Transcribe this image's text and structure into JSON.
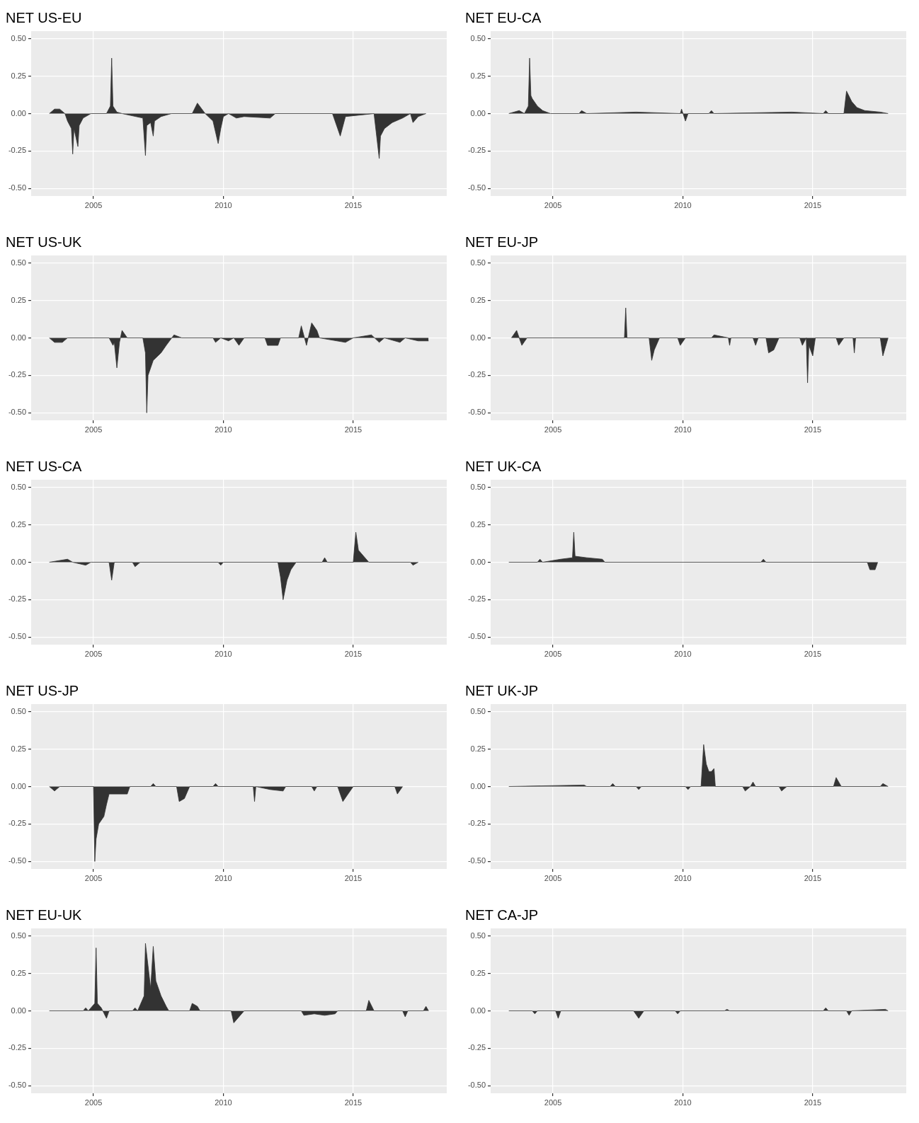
{
  "chart_data": [
    {
      "type": "area",
      "title": "NET US-EU",
      "color": "#333333",
      "grid": true,
      "xlim": [
        2002.6,
        2018.6
      ],
      "ylim": [
        -0.55,
        0.55
      ],
      "xticks": [
        2005,
        2010,
        2015
      ],
      "yticks": [
        {
          "value": -0.5,
          "label": "-0.50"
        },
        {
          "value": -0.25,
          "label": "-0.25"
        },
        {
          "value": 0,
          "label": "0.00"
        },
        {
          "value": 0.25,
          "label": "0.25"
        },
        {
          "value": 0.5,
          "label": "0.50"
        }
      ],
      "x": [
        2003.3,
        2003.5,
        2003.7,
        2003.9,
        2004.0,
        2004.15,
        2004.2,
        2004.25,
        2004.4,
        2004.45,
        2004.6,
        2004.9,
        2005.5,
        2005.65,
        2005.7,
        2005.75,
        2005.9,
        2006.1,
        2006.9,
        2007.0,
        2007.05,
        2007.2,
        2007.3,
        2007.35,
        2007.6,
        2008.0,
        2008.8,
        2009.0,
        2009.3,
        2009.6,
        2009.8,
        2009.9,
        2010.0,
        2010.2,
        2010.5,
        2010.8,
        2011.8,
        2012.0,
        2014.2,
        2014.4,
        2014.5,
        2014.7,
        2015.8,
        2016.0,
        2016.05,
        2016.2,
        2016.5,
        2016.9,
        2017.2,
        2017.3,
        2017.5,
        2017.8
      ],
      "values": [
        0,
        0.03,
        0.03,
        0,
        -0.05,
        -0.1,
        -0.27,
        -0.1,
        -0.22,
        -0.08,
        -0.03,
        0,
        0,
        0.05,
        0.37,
        0.05,
        0.01,
        0,
        -0.03,
        -0.28,
        -0.08,
        -0.06,
        -0.15,
        -0.05,
        -0.02,
        0,
        0,
        0.07,
        0,
        -0.05,
        -0.2,
        -0.1,
        -0.02,
        0,
        -0.03,
        -0.02,
        -0.03,
        0,
        0,
        -0.1,
        -0.15,
        -0.02,
        0,
        -0.3,
        -0.15,
        -0.1,
        -0.06,
        -0.03,
        0,
        -0.06,
        -0.02,
        0
      ]
    },
    {
      "type": "area",
      "title": "NET EU-CA",
      "color": "#333333",
      "grid": true,
      "xlim": [
        2002.6,
        2018.6
      ],
      "ylim": [
        -0.55,
        0.55
      ],
      "xticks": [
        2005,
        2010,
        2015
      ],
      "yticks": [
        {
          "value": -0.5,
          "label": "-0.50"
        },
        {
          "value": -0.25,
          "label": "-0.25"
        },
        {
          "value": 0,
          "label": "0.00"
        },
        {
          "value": 0.25,
          "label": "0.25"
        },
        {
          "value": 0.5,
          "label": "0.50"
        }
      ],
      "x": [
        2003.3,
        2003.7,
        2003.9,
        2004.05,
        2004.1,
        2004.15,
        2004.2,
        2004.4,
        2004.6,
        2004.9,
        2006.0,
        2006.1,
        2006.3,
        2008.2,
        2009.9,
        2009.95,
        2010.1,
        2010.2,
        2011.0,
        2011.1,
        2011.2,
        2014.2,
        2015.4,
        2015.5,
        2015.6,
        2016.2,
        2016.3,
        2016.5,
        2016.7,
        2017.0,
        2017.6,
        2017.9
      ],
      "values": [
        0,
        0.02,
        0,
        0.05,
        0.37,
        0.12,
        0.1,
        0.05,
        0.02,
        0,
        0,
        0.02,
        0,
        0.01,
        0,
        0.03,
        -0.05,
        0,
        0,
        0.02,
        0,
        0.01,
        0,
        0.02,
        0,
        0,
        0.15,
        0.08,
        0.04,
        0.02,
        0.01,
        0
      ]
    },
    {
      "type": "area",
      "title": "NET US-UK",
      "color": "#333333",
      "grid": true,
      "xlim": [
        2002.6,
        2018.6
      ],
      "ylim": [
        -0.55,
        0.55
      ],
      "xticks": [
        2005,
        2010,
        2015
      ],
      "yticks": [
        {
          "value": -0.5,
          "label": "-0.50"
        },
        {
          "value": -0.25,
          "label": "-0.25"
        },
        {
          "value": 0,
          "label": "0.00"
        },
        {
          "value": 0.25,
          "label": "0.25"
        },
        {
          "value": 0.5,
          "label": "0.50"
        }
      ],
      "x": [
        2003.3,
        2003.5,
        2003.8,
        2004.0,
        2005.6,
        2005.75,
        2005.8,
        2005.9,
        2006.0,
        2006.1,
        2006.3,
        2006.9,
        2007.0,
        2007.05,
        2007.1,
        2007.3,
        2007.6,
        2007.8,
        2008.1,
        2008.4,
        2009.6,
        2009.7,
        2009.9,
        2010.2,
        2010.4,
        2010.6,
        2010.8,
        2011.6,
        2011.7,
        2012.1,
        2012.2,
        2012.9,
        2013.0,
        2013.2,
        2013.4,
        2013.6,
        2013.7,
        2014.7,
        2015.0,
        2015.7,
        2016.0,
        2016.2,
        2016.8,
        2017.0,
        2017.5,
        2017.9
      ],
      "values": [
        0,
        -0.03,
        -0.03,
        0,
        0,
        -0.05,
        -0.03,
        -0.2,
        -0.03,
        0.05,
        0,
        0,
        -0.1,
        -0.5,
        -0.25,
        -0.15,
        -0.1,
        -0.05,
        0.02,
        0,
        0,
        -0.03,
        0,
        -0.02,
        0,
        -0.05,
        0,
        0,
        -0.05,
        -0.05,
        0,
        0,
        0.08,
        -0.05,
        0.1,
        0.05,
        0,
        -0.03,
        0,
        0.02,
        -0.03,
        0,
        -0.03,
        0,
        -0.02,
        -0.02
      ]
    },
    {
      "type": "area",
      "title": "NET EU-JP",
      "color": "#333333",
      "grid": true,
      "xlim": [
        2002.6,
        2018.6
      ],
      "ylim": [
        -0.55,
        0.55
      ],
      "xticks": [
        2005,
        2010,
        2015
      ],
      "yticks": [
        {
          "value": -0.5,
          "label": "-0.50"
        },
        {
          "value": -0.25,
          "label": "-0.25"
        },
        {
          "value": 0,
          "label": "0.00"
        },
        {
          "value": 0.25,
          "label": "0.25"
        },
        {
          "value": 0.5,
          "label": "0.50"
        }
      ],
      "x": [
        2003.4,
        2003.6,
        2003.8,
        2004.0,
        2007.75,
        2007.8,
        2007.85,
        2008.7,
        2008.8,
        2008.9,
        2009.1,
        2009.8,
        2009.9,
        2010.1,
        2011.1,
        2011.2,
        2011.75,
        2011.8,
        2011.85,
        2012.7,
        2012.8,
        2012.9,
        2013.2,
        2013.3,
        2013.5,
        2013.7,
        2014.5,
        2014.6,
        2014.75,
        2014.8,
        2014.85,
        2015.0,
        2015.1,
        2015.9,
        2016.0,
        2016.2,
        2016.55,
        2016.6,
        2016.65,
        2017.6,
        2017.7,
        2017.9
      ],
      "values": [
        0,
        0.05,
        -0.05,
        0,
        0,
        0.2,
        0,
        0,
        -0.15,
        -0.08,
        0,
        0,
        -0.05,
        0,
        0,
        0.02,
        0,
        -0.05,
        0,
        0,
        -0.05,
        0,
        0,
        -0.1,
        -0.08,
        0,
        0,
        -0.05,
        0,
        -0.3,
        -0.05,
        -0.12,
        0,
        0,
        -0.05,
        0,
        0,
        -0.1,
        0,
        0,
        -0.12,
        0
      ]
    },
    {
      "type": "area",
      "title": "NET US-CA",
      "color": "#333333",
      "grid": true,
      "xlim": [
        2002.6,
        2018.6
      ],
      "ylim": [
        -0.55,
        0.55
      ],
      "xticks": [
        2005,
        2010,
        2015
      ],
      "yticks": [
        {
          "value": -0.5,
          "label": "-0.50"
        },
        {
          "value": -0.25,
          "label": "-0.25"
        },
        {
          "value": 0,
          "label": "0.00"
        },
        {
          "value": 0.25,
          "label": "0.25"
        },
        {
          "value": 0.5,
          "label": "0.50"
        }
      ],
      "x": [
        2003.3,
        2004.0,
        2004.2,
        2004.7,
        2004.9,
        2005.6,
        2005.7,
        2005.8,
        2006.5,
        2006.6,
        2006.8,
        2009.8,
        2009.9,
        2010.0,
        2012.1,
        2012.2,
        2012.3,
        2012.45,
        2012.6,
        2012.8,
        2013.8,
        2013.9,
        2014.0,
        2015.0,
        2015.1,
        2015.2,
        2015.4,
        2015.6,
        2017.2,
        2017.3,
        2017.5
      ],
      "values": [
        0,
        0.02,
        0,
        -0.02,
        0,
        0,
        -0.12,
        0,
        0,
        -0.03,
        0,
        0,
        -0.02,
        0,
        0,
        -0.1,
        -0.25,
        -0.12,
        -0.05,
        0,
        0,
        0.03,
        0,
        0,
        0.2,
        0.08,
        0.04,
        0,
        0,
        -0.02,
        0
      ]
    },
    {
      "type": "area",
      "title": "NET UK-CA",
      "color": "#333333",
      "grid": true,
      "xlim": [
        2002.6,
        2018.6
      ],
      "ylim": [
        -0.55,
        0.55
      ],
      "xticks": [
        2005,
        2010,
        2015
      ],
      "yticks": [
        {
          "value": -0.5,
          "label": "-0.50"
        },
        {
          "value": -0.25,
          "label": "-0.25"
        },
        {
          "value": 0,
          "label": "0.00"
        },
        {
          "value": 0.25,
          "label": "0.25"
        },
        {
          "value": 0.5,
          "label": "0.50"
        }
      ],
      "x": [
        2003.3,
        2004.4,
        2004.5,
        2004.6,
        2005.3,
        2005.75,
        2005.8,
        2005.85,
        2006.3,
        2006.9,
        2007.0,
        2013.0,
        2013.1,
        2013.2,
        2017.1,
        2017.2,
        2017.4,
        2017.5
      ],
      "values": [
        0,
        0,
        0.02,
        0,
        0.02,
        0.03,
        0.2,
        0.04,
        0.03,
        0.02,
        0,
        0,
        0.02,
        0,
        0,
        -0.05,
        -0.05,
        0
      ]
    },
    {
      "type": "area",
      "title": "NET US-JP",
      "color": "#333333",
      "grid": true,
      "xlim": [
        2002.6,
        2018.6
      ],
      "ylim": [
        -0.55,
        0.55
      ],
      "xticks": [
        2005,
        2010,
        2015
      ],
      "yticks": [
        {
          "value": -0.5,
          "label": "-0.50"
        },
        {
          "value": -0.25,
          "label": "-0.25"
        },
        {
          "value": 0,
          "label": "0.00"
        },
        {
          "value": 0.25,
          "label": "0.25"
        },
        {
          "value": 0.5,
          "label": "0.50"
        }
      ],
      "x": [
        2003.3,
        2003.5,
        2003.7,
        2005.0,
        2005.05,
        2005.1,
        2005.2,
        2005.4,
        2005.5,
        2005.6,
        2006.3,
        2006.4,
        2007.2,
        2007.3,
        2007.4,
        2008.2,
        2008.3,
        2008.5,
        2008.7,
        2009.6,
        2009.7,
        2009.8,
        2011.15,
        2011.2,
        2011.25,
        2011.8,
        2012.3,
        2012.4,
        2013.4,
        2013.5,
        2013.6,
        2014.4,
        2014.6,
        2014.8,
        2015.0,
        2016.6,
        2016.7,
        2016.9
      ],
      "values": [
        0,
        -0.03,
        0,
        0,
        -0.5,
        -0.35,
        -0.25,
        -0.2,
        -0.12,
        -0.05,
        -0.05,
        0,
        0,
        0.02,
        0,
        0,
        -0.1,
        -0.08,
        0,
        0,
        0.02,
        0,
        0,
        -0.1,
        0,
        -0.02,
        -0.03,
        0,
        0,
        -0.03,
        0,
        0,
        -0.1,
        -0.05,
        0,
        0,
        -0.05,
        0
      ]
    },
    {
      "type": "area",
      "title": "NET UK-JP",
      "color": "#333333",
      "grid": true,
      "xlim": [
        2002.6,
        2018.6
      ],
      "ylim": [
        -0.55,
        0.55
      ],
      "xticks": [
        2005,
        2010,
        2015
      ],
      "yticks": [
        {
          "value": -0.5,
          "label": "-0.50"
        },
        {
          "value": -0.25,
          "label": "-0.25"
        },
        {
          "value": 0,
          "label": "0.00"
        },
        {
          "value": 0.25,
          "label": "0.25"
        },
        {
          "value": 0.5,
          "label": "0.50"
        }
      ],
      "x": [
        2003.3,
        2006.2,
        2006.3,
        2007.2,
        2007.3,
        2007.4,
        2008.2,
        2008.3,
        2008.4,
        2010.1,
        2010.2,
        2010.3,
        2010.7,
        2010.8,
        2010.9,
        2011.0,
        2011.1,
        2011.2,
        2011.25,
        2012.3,
        2012.4,
        2012.6,
        2012.7,
        2012.8,
        2013.7,
        2013.8,
        2014.0,
        2015.8,
        2015.9,
        2016.1,
        2017.6,
        2017.7,
        2017.9
      ],
      "values": [
        0,
        0.01,
        0,
        0,
        0.02,
        0,
        0,
        -0.02,
        0,
        0,
        -0.02,
        0,
        0,
        0.28,
        0.15,
        0.1,
        0.1,
        0.12,
        0,
        0,
        -0.03,
        0,
        0.03,
        0,
        0,
        -0.03,
        0,
        0,
        0.06,
        0,
        0,
        0.02,
        0
      ]
    },
    {
      "type": "area",
      "title": "NET EU-UK",
      "color": "#333333",
      "grid": true,
      "xlim": [
        2002.6,
        2018.6
      ],
      "ylim": [
        -0.55,
        0.55
      ],
      "xticks": [
        2005,
        2010,
        2015
      ],
      "yticks": [
        {
          "value": -0.5,
          "label": "-0.50"
        },
        {
          "value": -0.25,
          "label": "-0.25"
        },
        {
          "value": 0,
          "label": "0.00"
        },
        {
          "value": 0.25,
          "label": "0.25"
        },
        {
          "value": 0.5,
          "label": "0.50"
        }
      ],
      "x": [
        2003.3,
        2004.6,
        2004.7,
        2004.8,
        2005.05,
        2005.1,
        2005.15,
        2005.3,
        2005.5,
        2005.6,
        2006.5,
        2006.6,
        2006.7,
        2006.95,
        2007.0,
        2007.1,
        2007.2,
        2007.3,
        2007.4,
        2007.6,
        2007.8,
        2007.9,
        2008.7,
        2008.8,
        2009.0,
        2009.1,
        2010.3,
        2010.4,
        2010.6,
        2010.8,
        2013.0,
        2013.1,
        2013.5,
        2013.9,
        2014.3,
        2014.4,
        2015.5,
        2015.6,
        2015.8,
        2016.9,
        2017.0,
        2017.1,
        2017.7,
        2017.8,
        2017.9
      ],
      "values": [
        0,
        0,
        0.02,
        0,
        0.05,
        0.42,
        0.05,
        0.02,
        -0.05,
        0,
        0,
        0.02,
        0,
        0.1,
        0.45,
        0.3,
        0.15,
        0.43,
        0.2,
        0.1,
        0.03,
        0,
        0,
        0.05,
        0.03,
        0,
        0,
        -0.08,
        -0.04,
        0,
        0,
        -0.03,
        -0.02,
        -0.03,
        -0.02,
        0,
        0,
        0.07,
        0,
        0,
        -0.04,
        0,
        0,
        0.03,
        0
      ]
    },
    {
      "type": "area",
      "title": "NET CA-JP",
      "color": "#333333",
      "grid": true,
      "xlim": [
        2002.6,
        2018.6
      ],
      "ylim": [
        -0.55,
        0.55
      ],
      "xticks": [
        2005,
        2010,
        2015
      ],
      "yticks": [
        {
          "value": -0.5,
          "label": "-0.50"
        },
        {
          "value": -0.25,
          "label": "-0.25"
        },
        {
          "value": 0,
          "label": "0.00"
        },
        {
          "value": 0.25,
          "label": "0.25"
        },
        {
          "value": 0.5,
          "label": "0.50"
        }
      ],
      "x": [
        2003.3,
        2004.2,
        2004.3,
        2004.4,
        2005.1,
        2005.2,
        2005.3,
        2008.1,
        2008.3,
        2008.5,
        2009.7,
        2009.8,
        2009.9,
        2011.6,
        2011.7,
        2011.8,
        2015.4,
        2015.5,
        2015.6,
        2016.3,
        2016.4,
        2016.5,
        2017.8,
        2017.9
      ],
      "values": [
        0,
        0,
        -0.02,
        0,
        0,
        -0.05,
        0,
        0,
        -0.05,
        0,
        0,
        -0.02,
        0,
        0,
        0.01,
        0,
        0,
        0.02,
        0,
        0,
        -0.03,
        0,
        0.01,
        0
      ]
    }
  ]
}
